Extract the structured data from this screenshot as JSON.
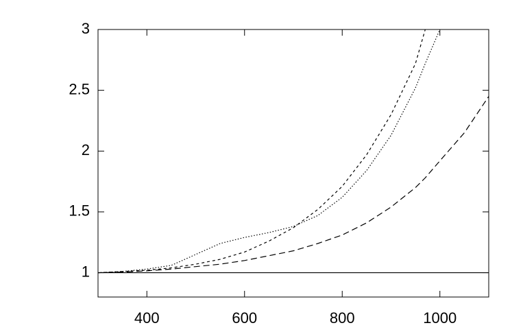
{
  "chart_data": {
    "type": "line",
    "x": [
      300,
      350,
      400,
      450,
      500,
      550,
      600,
      650,
      700,
      750,
      800,
      850,
      900,
      950,
      970,
      1000,
      1050,
      1100
    ],
    "series": [
      {
        "color": "#000000",
        "dash": "none",
        "values": [
          1,
          1,
          1,
          1,
          1,
          1,
          1,
          1,
          1,
          1,
          1,
          1,
          1,
          1,
          1,
          1,
          1,
          1
        ]
      },
      {
        "color": "#000000",
        "dash": "9,5",
        "values": [
          1.0,
          1.005,
          1.015,
          1.03,
          1.05,
          1.07,
          1.1,
          1.14,
          1.18,
          1.24,
          1.31,
          1.41,
          1.54,
          1.7,
          1.78,
          1.92,
          2.15,
          2.45
        ]
      },
      {
        "color": "#000000",
        "dash": "4,4",
        "values": [
          1.0,
          1.01,
          1.02,
          1.04,
          1.07,
          1.11,
          1.17,
          1.26,
          1.37,
          1.52,
          1.71,
          1.97,
          2.3,
          2.72,
          3.0,
          null,
          null,
          null
        ]
      },
      {
        "color": "#000000",
        "dash": "1.5,2.5",
        "values": [
          1.0,
          1.01,
          1.03,
          1.06,
          1.15,
          1.24,
          1.29,
          1.33,
          1.38,
          1.47,
          1.62,
          1.84,
          2.13,
          2.52,
          2.72,
          3.0,
          null,
          null
        ]
      }
    ],
    "xlim": [
      300,
      1100
    ],
    "xticks": [
      400,
      600,
      800,
      1000
    ],
    "ylim": [
      0.8,
      3
    ],
    "yticks": [
      1,
      1.5,
      2,
      2.5,
      3
    ]
  }
}
